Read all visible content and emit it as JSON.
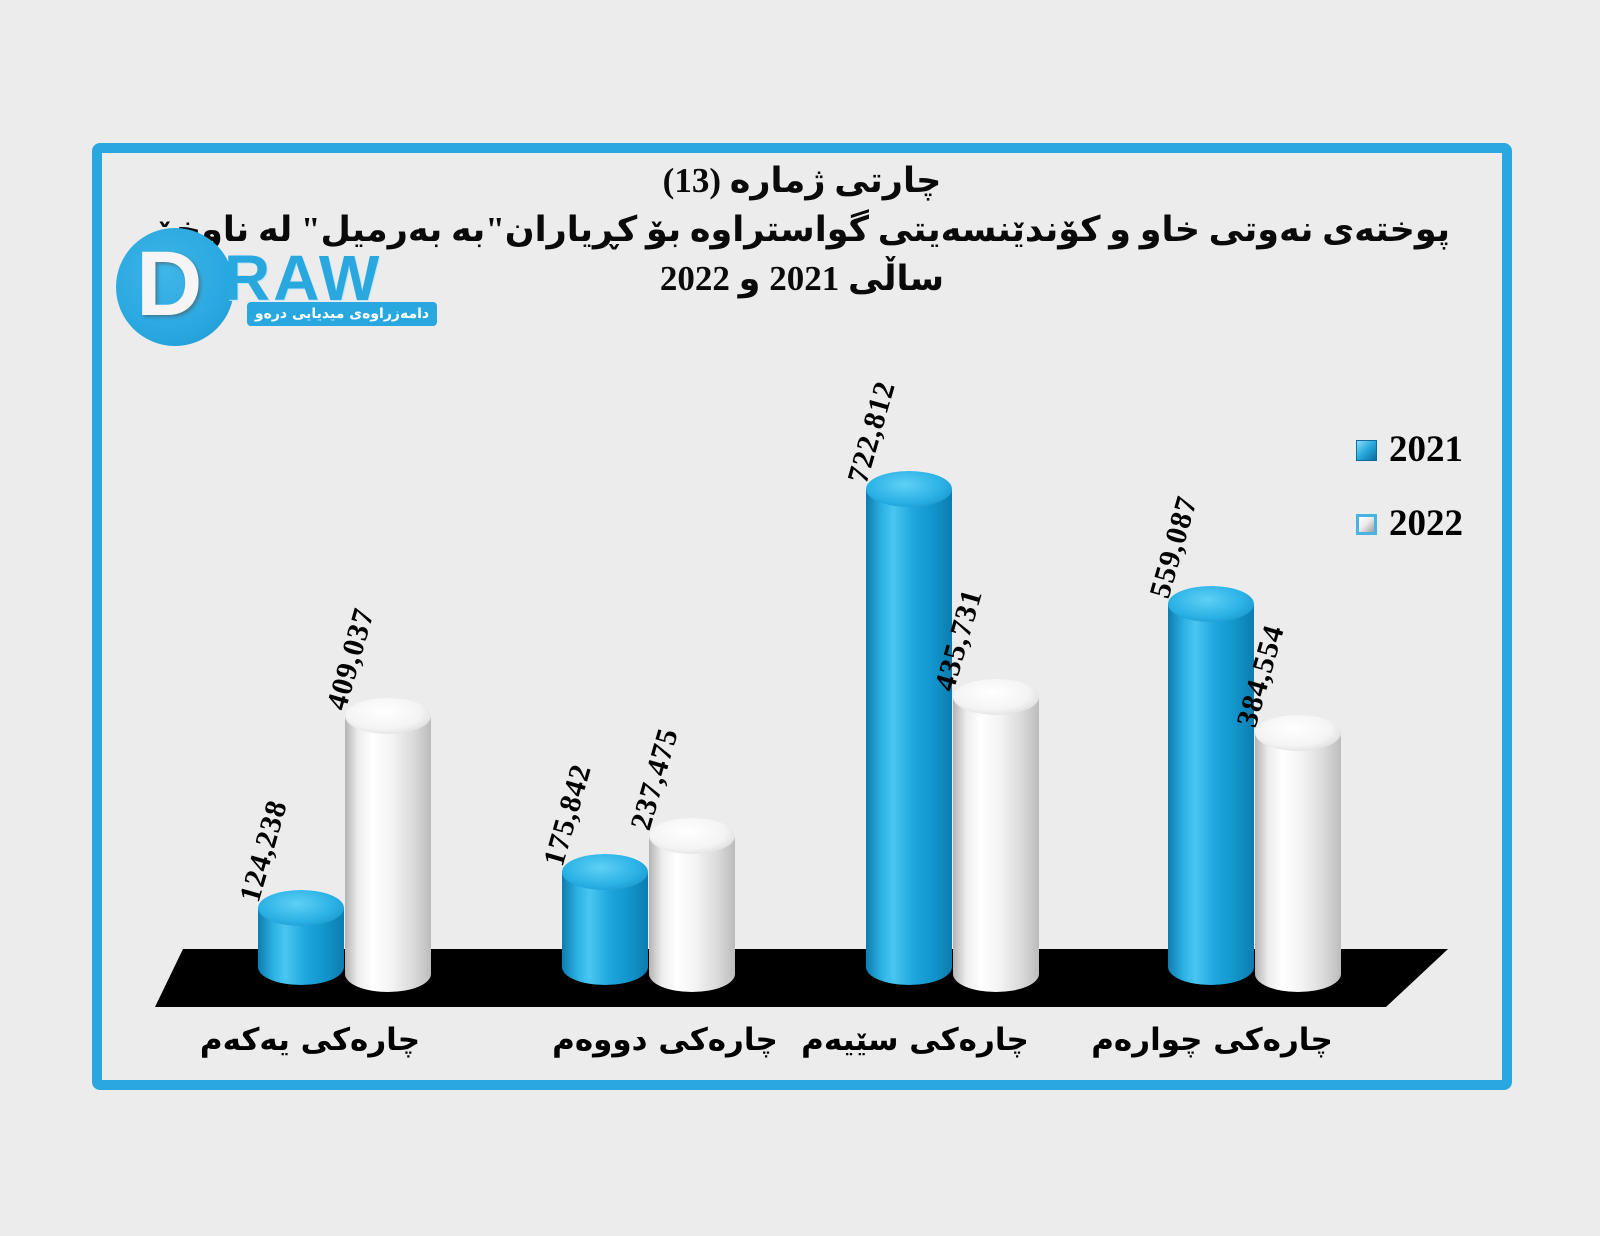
{
  "title": {
    "line1": "چارتی ژمارە (13)",
    "line2": "پوختەی نەوتی خاو و  کۆندێنسەیتی گواستراوە بۆ کڕیاران\"بە بەرمیل\" لە ناوخۆ",
    "line3": "ساڵی 2021 و 2022"
  },
  "logo": {
    "initial": "D",
    "wordmark": "RAW",
    "tagline": "دامەزراوەی میدیایی درەو",
    "brand_color": "#29a8e0"
  },
  "legend": {
    "items": [
      {
        "label": "2021",
        "swatch": "blue-beveled-square",
        "color": "#1b9fd9"
      },
      {
        "label": "2022",
        "swatch": "silver-beveled-square",
        "color": "#f0f0f0"
      }
    ]
  },
  "chart_data": {
    "type": "bar",
    "style": "3d-cylinder",
    "title": "چارتی ژمارە (13) پوختەی نەوتی خاو و کۆندێنسەیتی گواستراوە بۆ کڕیاران\"بە بەرمیل\" لە ناوخۆ ساڵی 2021 و 2022",
    "categories": [
      "چارەکی یەکەم",
      "چارەکی دووەم",
      "چارەکی سێیەم",
      "چارەکی چوارەم"
    ],
    "series": [
      {
        "name": "2021",
        "color": "#1b9fd9",
        "values": [
          124238,
          175842,
          722812,
          559087
        ]
      },
      {
        "name": "2022",
        "color": "#f0f0f0",
        "values": [
          409037,
          237475,
          435731,
          384554
        ]
      }
    ],
    "value_label_format": "#,###",
    "legend_position": "right",
    "floor_color": "#000000",
    "frame_color": "#29a8e0",
    "background": "#ececec"
  }
}
